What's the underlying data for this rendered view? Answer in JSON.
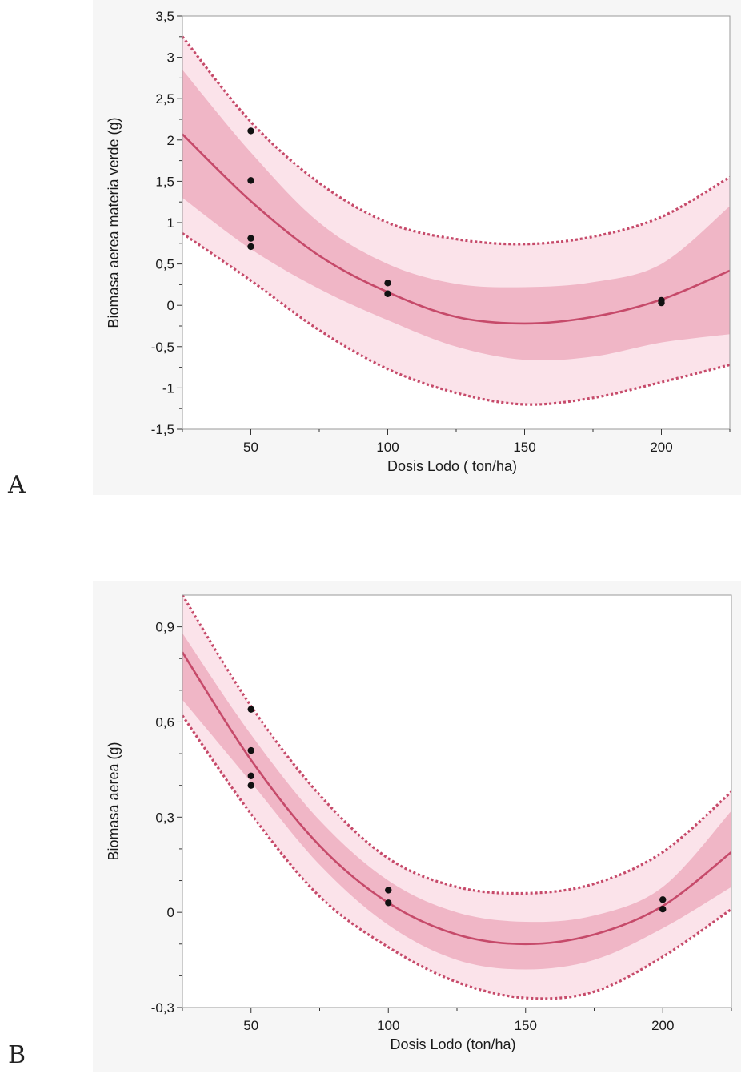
{
  "panels": [
    {
      "letter": "A",
      "chart_data": {
        "type": "line",
        "xlabel": "Dosis Lodo ( ton/ha)",
        "ylabel": "Biomasa aerea materia verde (g)",
        "xlim": [
          25,
          225
        ],
        "ylim": [
          -1.5,
          3.5
        ],
        "x_ticks": [
          50,
          100,
          150,
          200
        ],
        "x_tick_labels": [
          "50",
          "100",
          "150",
          "200"
        ],
        "y_ticks": [
          -1.5,
          -1,
          -0.5,
          0,
          0.5,
          1,
          1.5,
          2,
          2.5,
          3,
          3.5
        ],
        "y_tick_labels": [
          "-1,5",
          "-1",
          "-0,5",
          "0",
          "0,5",
          "1",
          "1,5",
          "2",
          "2,5",
          "3",
          "3,5"
        ],
        "series": [
          {
            "role": "fit",
            "x": [
              25,
              50,
              75,
              100,
              125,
              150,
              175,
              200,
              225
            ],
            "y": [
              2.07,
              1.26,
              0.6,
              0.16,
              -0.14,
              -0.22,
              -0.14,
              0.07,
              0.42
            ]
          },
          {
            "role": "confidence_upper",
            "x": [
              25,
              50,
              75,
              100,
              125,
              150,
              175,
              200,
              225
            ],
            "y": [
              2.85,
              1.85,
              1.0,
              0.5,
              0.26,
              0.22,
              0.28,
              0.5,
              1.2
            ]
          },
          {
            "role": "confidence_lower",
            "x": [
              25,
              50,
              75,
              100,
              125,
              150,
              175,
              200,
              225
            ],
            "y": [
              1.3,
              0.68,
              0.2,
              -0.18,
              -0.5,
              -0.66,
              -0.62,
              -0.45,
              -0.35
            ]
          },
          {
            "role": "prediction_upper",
            "x": [
              25,
              50,
              75,
              100,
              125,
              150,
              175,
              200,
              225
            ],
            "y": [
              3.25,
              2.22,
              1.48,
              1.0,
              0.8,
              0.74,
              0.83,
              1.07,
              1.55
            ]
          },
          {
            "role": "prediction_lower",
            "x": [
              25,
              50,
              75,
              100,
              125,
              150,
              175,
              200,
              225
            ],
            "y": [
              0.87,
              0.3,
              -0.3,
              -0.77,
              -1.06,
              -1.2,
              -1.12,
              -0.93,
              -0.72
            ]
          },
          {
            "role": "observed",
            "x": [
              50,
              50,
              50,
              50,
              100,
              100,
              200,
              200
            ],
            "y": [
              2.11,
              1.51,
              0.81,
              0.71,
              0.27,
              0.14,
              0.06,
              0.03
            ]
          }
        ],
        "colors": {
          "line": "#c64a6a",
          "confidence_band": "#f0b6c6",
          "prediction_band": "#fbe3ea",
          "points": "#111111"
        },
        "grid": false
      }
    },
    {
      "letter": "B",
      "chart_data": {
        "type": "line",
        "xlabel": "Dosis Lodo (ton/ha)",
        "ylabel": "Biomasa aerea (g)",
        "xlim": [
          25,
          225
        ],
        "ylim": [
          -0.3,
          1.0
        ],
        "x_ticks": [
          50,
          100,
          150,
          200
        ],
        "x_tick_labels": [
          "50",
          "100",
          "150",
          "200"
        ],
        "y_ticks": [
          -0.3,
          0,
          0.3,
          0.6,
          0.9
        ],
        "y_tick_labels": [
          "-0,3",
          "0",
          "0,3",
          "0,6",
          "0,9"
        ],
        "series": [
          {
            "role": "fit",
            "x": [
              25,
              50,
              75,
              100,
              125,
              150,
              175,
              200,
              225
            ],
            "y": [
              0.82,
              0.48,
              0.21,
              0.03,
              -0.07,
              -0.1,
              -0.07,
              0.02,
              0.19
            ]
          },
          {
            "role": "confidence_upper",
            "x": [
              25,
              50,
              75,
              100,
              125,
              150,
              175,
              200,
              225
            ],
            "y": [
              0.88,
              0.56,
              0.29,
              0.1,
              0.0,
              -0.03,
              -0.01,
              0.08,
              0.32
            ]
          },
          {
            "role": "confidence_lower",
            "x": [
              25,
              50,
              75,
              100,
              125,
              150,
              175,
              200,
              225
            ],
            "y": [
              0.67,
              0.41,
              0.15,
              -0.04,
              -0.15,
              -0.18,
              -0.15,
              -0.05,
              0.08
            ]
          },
          {
            "role": "prediction_upper",
            "x": [
              25,
              50,
              75,
              100,
              125,
              150,
              175,
              200,
              225
            ],
            "y": [
              1.0,
              0.65,
              0.37,
              0.17,
              0.08,
              0.06,
              0.09,
              0.19,
              0.38
            ]
          },
          {
            "role": "prediction_lower",
            "x": [
              25,
              50,
              75,
              100,
              125,
              150,
              175,
              200,
              225
            ],
            "y": [
              0.62,
              0.31,
              0.05,
              -0.11,
              -0.22,
              -0.27,
              -0.25,
              -0.14,
              0.01
            ]
          },
          {
            "role": "observed",
            "x": [
              50,
              50,
              50,
              50,
              100,
              100,
              200,
              200
            ],
            "y": [
              0.64,
              0.51,
              0.43,
              0.4,
              0.07,
              0.03,
              0.04,
              0.01
            ]
          }
        ],
        "colors": {
          "line": "#c64a6a",
          "confidence_band": "#f0b6c6",
          "prediction_band": "#fbe3ea",
          "points": "#111111"
        },
        "grid": false
      }
    }
  ]
}
